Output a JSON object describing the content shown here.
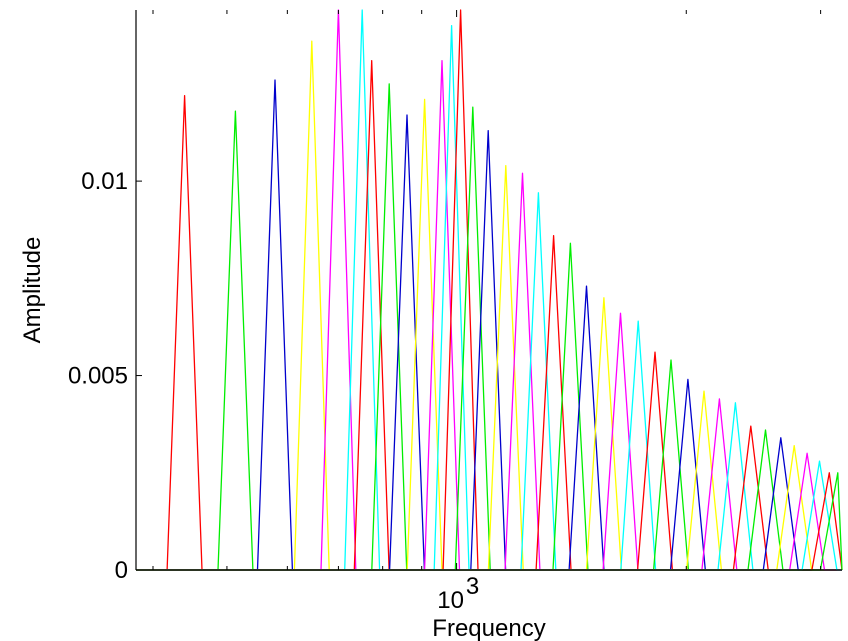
{
  "chart_data": {
    "type": "line",
    "xscale": "log",
    "xlim": [
      380,
      3200
    ],
    "ylim": [
      0,
      0.0144
    ],
    "xlabel": "Frequency",
    "ylabel": "Amplitude",
    "title": "",
    "grid": false,
    "x_ticks": [
      {
        "value": 1000,
        "base": "10",
        "exponent": "3"
      }
    ],
    "y_ticks": [
      {
        "value": 0,
        "label": "0"
      },
      {
        "value": 0.005,
        "label": "0.005"
      },
      {
        "value": 0.01,
        "label": "0.01"
      }
    ],
    "series_colors": [
      "#ff0000",
      "#00ee00",
      "#0000cc",
      "#ffff00",
      "#ff00ff",
      "#00ffff"
    ],
    "series_count": 38,
    "peak_ratio": 1.054,
    "series": [
      {
        "color": "#ff0000",
        "peak_x": 440,
        "peak_y": 0.0122
      },
      {
        "color": "#00ee00",
        "peak_x": 513,
        "peak_y": 0.0118
      },
      {
        "color": "#0000cc",
        "peak_x": 578,
        "peak_y": 0.0126
      },
      {
        "color": "#ffff00",
        "peak_x": 646,
        "peak_y": 0.0136
      },
      {
        "color": "#ff00ff",
        "peak_x": 700,
        "peak_y": 0.0144
      },
      {
        "color": "#00ffff",
        "peak_x": 752,
        "peak_y": 0.0144
      },
      {
        "color": "#ff0000",
        "peak_x": 774,
        "peak_y": 0.0131
      },
      {
        "color": "#00ee00",
        "peak_x": 816,
        "peak_y": 0.0125
      },
      {
        "color": "#0000cc",
        "peak_x": 861,
        "peak_y": 0.0117
      },
      {
        "color": "#ffff00",
        "peak_x": 908,
        "peak_y": 0.0121
      },
      {
        "color": "#ff00ff",
        "peak_x": 957,
        "peak_y": 0.0131
      },
      {
        "color": "#00ffff",
        "peak_x": 985,
        "peak_y": 0.014
      },
      {
        "color": "#ff0000",
        "peak_x": 1012,
        "peak_y": 0.0144
      },
      {
        "color": "#00ee00",
        "peak_x": 1050,
        "peak_y": 0.0119
      },
      {
        "color": "#0000cc",
        "peak_x": 1100,
        "peak_y": 0.0113
      },
      {
        "color": "#ffff00",
        "peak_x": 1160,
        "peak_y": 0.0104
      },
      {
        "color": "#ff00ff",
        "peak_x": 1220,
        "peak_y": 0.0102
      },
      {
        "color": "#00ffff",
        "peak_x": 1280,
        "peak_y": 0.0097
      },
      {
        "color": "#ff0000",
        "peak_x": 1340,
        "peak_y": 0.0086
      },
      {
        "color": "#00ee00",
        "peak_x": 1410,
        "peak_y": 0.0084
      },
      {
        "color": "#0000cc",
        "peak_x": 1480,
        "peak_y": 0.0073
      },
      {
        "color": "#ffff00",
        "peak_x": 1560,
        "peak_y": 0.007
      },
      {
        "color": "#ff00ff",
        "peak_x": 1640,
        "peak_y": 0.0066
      },
      {
        "color": "#00ffff",
        "peak_x": 1730,
        "peak_y": 0.0064
      },
      {
        "color": "#ff0000",
        "peak_x": 1820,
        "peak_y": 0.0056
      },
      {
        "color": "#00ee00",
        "peak_x": 1910,
        "peak_y": 0.0054
      },
      {
        "color": "#0000cc",
        "peak_x": 2010,
        "peak_y": 0.0049
      },
      {
        "color": "#ffff00",
        "peak_x": 2110,
        "peak_y": 0.0046
      },
      {
        "color": "#ff00ff",
        "peak_x": 2210,
        "peak_y": 0.0044
      },
      {
        "color": "#00ffff",
        "peak_x": 2320,
        "peak_y": 0.0043
      },
      {
        "color": "#ff0000",
        "peak_x": 2430,
        "peak_y": 0.0037
      },
      {
        "color": "#00ee00",
        "peak_x": 2540,
        "peak_y": 0.0036
      },
      {
        "color": "#0000cc",
        "peak_x": 2660,
        "peak_y": 0.0034
      },
      {
        "color": "#ffff00",
        "peak_x": 2770,
        "peak_y": 0.0032
      },
      {
        "color": "#ff00ff",
        "peak_x": 2880,
        "peak_y": 0.003
      },
      {
        "color": "#00ffff",
        "peak_x": 2990,
        "peak_y": 0.0028
      },
      {
        "color": "#ff0000",
        "peak_x": 3080,
        "peak_y": 0.0025
      },
      {
        "color": "#00ee00",
        "peak_x": 3160,
        "peak_y": 0.0025
      }
    ]
  }
}
